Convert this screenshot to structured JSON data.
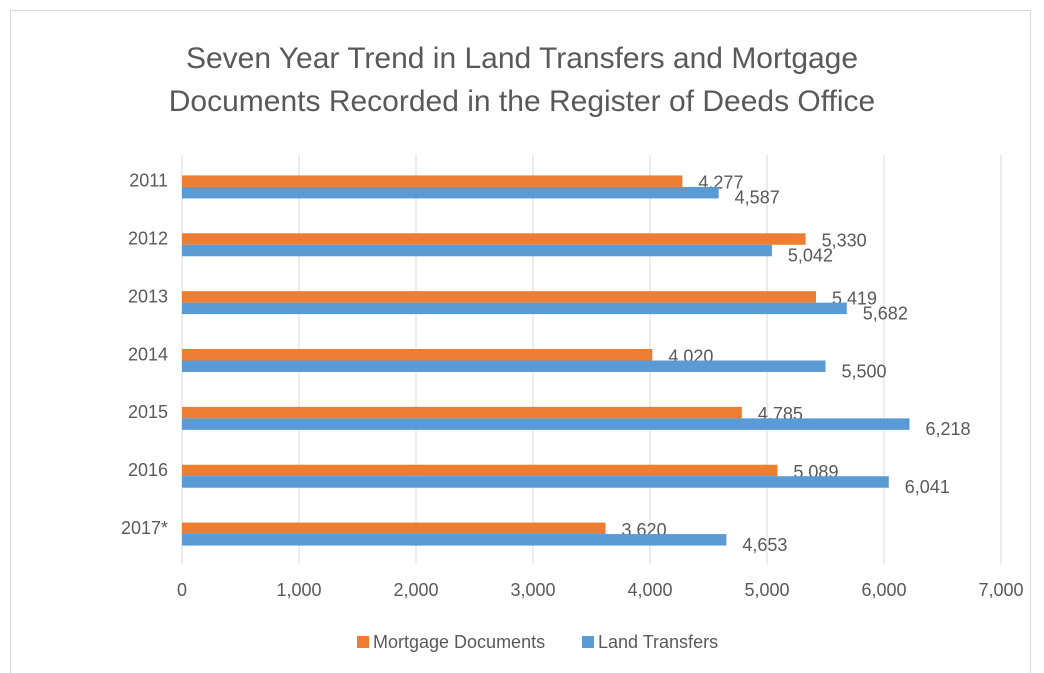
{
  "chart_data": {
    "type": "hbar",
    "title": [
      "Seven Year Trend in Land Transfers and Mortgage",
      "Documents Recorded in the Register of Deeds Office"
    ],
    "categories": [
      "2011",
      "2012",
      "2013",
      "2014",
      "2015",
      "2016",
      "2017*"
    ],
    "series": [
      {
        "name": "Mortgage Documents",
        "color": "#ed7d31",
        "values": [
          4277,
          5330,
          5419,
          4020,
          4785,
          5089,
          3620
        ],
        "value_labels": [
          "4,277",
          "5,330",
          "5,419",
          "4,020",
          "4,785",
          "5,089",
          "3,620"
        ]
      },
      {
        "name": "Land Transfers",
        "color": "#5b9bd5",
        "values": [
          4587,
          5042,
          5682,
          5500,
          6218,
          6041,
          4653
        ],
        "value_labels": [
          "4,587",
          "5,042",
          "5,682",
          "5,500",
          "6,218",
          "6,041",
          "4,653"
        ]
      }
    ],
    "xlim": [
      0,
      7000
    ],
    "xticks": [
      0,
      {
        "value": 1000,
        "label": "1,000"
      },
      {
        "value": 2000,
        "label": "2,000"
      },
      {
        "value": 3000,
        "label": "3,000"
      },
      {
        "value": 4000,
        "label": "4,000"
      },
      {
        "value": 5000,
        "label": "5,000"
      },
      {
        "value": 6000,
        "label": "6,000"
      },
      {
        "value": 7000,
        "label": "7,000"
      }
    ],
    "grid": true,
    "legend": "bottom"
  }
}
